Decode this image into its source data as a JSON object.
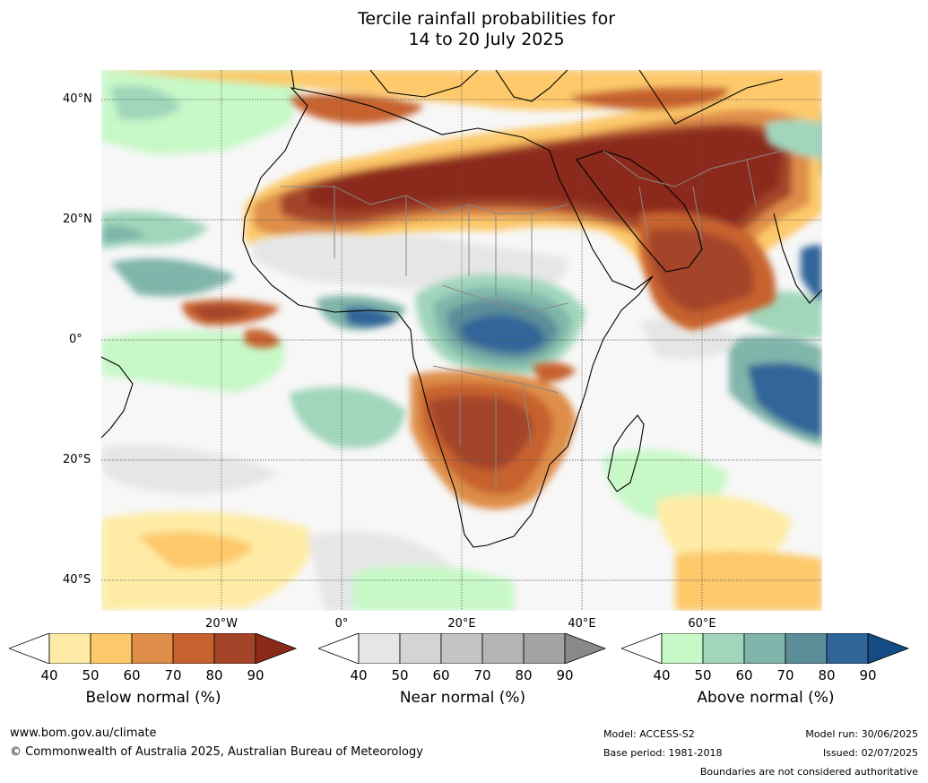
{
  "title": {
    "line1": "Tercile rainfall probabilities for",
    "line2": "14 to 20 July 2025"
  },
  "map": {
    "lat_labels": [
      "40°N",
      "20°N",
      "0°",
      "20°S",
      "40°S"
    ],
    "lon_labels": [
      "20°W",
      "0°",
      "20°E",
      "40°E",
      "60°E"
    ],
    "extent": {
      "lon": [
        -40,
        80
      ],
      "lat": [
        -45,
        45
      ]
    }
  },
  "legend": {
    "ticks": [
      "40",
      "50",
      "60",
      "70",
      "80",
      "90"
    ],
    "below": {
      "title": "Below normal (%)",
      "colors": [
        "#ffffff",
        "#feeca6",
        "#fdc96a",
        "#de8e48",
        "#c7622f",
        "#a4452a",
        "#8b2a1a"
      ]
    },
    "near": {
      "title": "Near normal (%)",
      "colors": [
        "#ffffff",
        "#e6e6e6",
        "#d4d4d4",
        "#c4c4c4",
        "#b4b4b4",
        "#a3a3a3",
        "#898989"
      ]
    },
    "above": {
      "title": "Above normal (%)",
      "colors": [
        "#ffffff",
        "#c7f8c7",
        "#a1d6bb",
        "#7fb5aa",
        "#5c8e9a",
        "#30659a",
        "#154b84"
      ]
    }
  },
  "footer": {
    "url": "www.bom.gov.au/climate",
    "copyright": "© Commonwealth of Australia 2025, Australian Bureau of Meteorology",
    "model": "Model: ACCESS-S2",
    "base_period": "Base period: 1981-2018",
    "model_run": "Model run: 30/06/2025",
    "issued": "Issued: 02/07/2025",
    "disclaimer": "Boundaries are not considered authoritative"
  }
}
